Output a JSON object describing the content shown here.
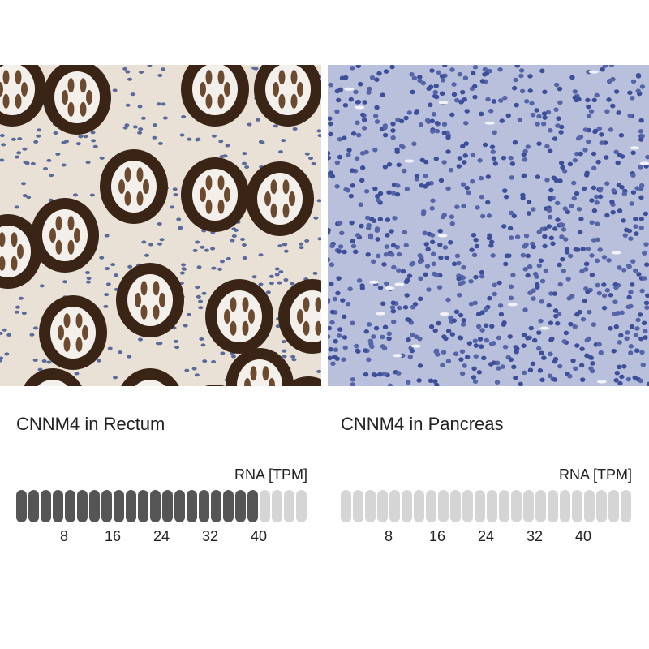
{
  "panels": [
    {
      "title": "CNNM4 in Rectum",
      "unit_label": "RNA [TPM]",
      "filled_pills": 20,
      "total_pills": 24,
      "ticks": [
        "8",
        "16",
        "24",
        "32",
        "40"
      ],
      "image": "rectum tissue immunohistochemistry, strong brown staining"
    },
    {
      "title": "CNNM4 in Pancreas",
      "unit_label": "RNA [TPM]",
      "filled_pills": 0,
      "total_pills": 24,
      "ticks": [
        "8",
        "16",
        "24",
        "32",
        "40"
      ],
      "image": "pancreas tissue immunohistochemistry, no staining"
    }
  ],
  "colors": {
    "filled": "#555555",
    "empty": "#d5d5d5",
    "stain": "#3a2416",
    "nuclei": "#4a5a9a"
  }
}
